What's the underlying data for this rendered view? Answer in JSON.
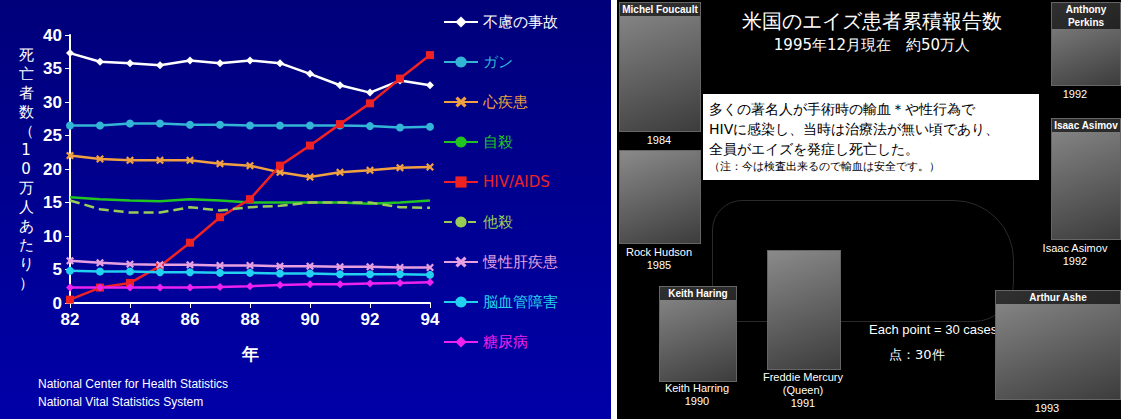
{
  "chart_data": {
    "type": "line",
    "x_label": "年",
    "y_label": "死亡者数（10万人あたり）",
    "annotations": [
      "National Center for Health Statistics",
      "National Vital Statistics System"
    ],
    "x": [
      82,
      83,
      84,
      85,
      86,
      87,
      88,
      89,
      90,
      91,
      92,
      93,
      94
    ],
    "xlim": [
      82,
      94
    ],
    "xticks": [
      82,
      84,
      86,
      88,
      90,
      92,
      94
    ],
    "ylim": [
      0,
      40
    ],
    "yticks": [
      0,
      5,
      10,
      15,
      20,
      25,
      30,
      35,
      40
    ],
    "grid": false,
    "legend": "right",
    "series": [
      {
        "name": "不慮の事故",
        "color": "#ffffff",
        "marker": "diamond",
        "line_style": "solid",
        "values": [
          37.3,
          36,
          35.8,
          35.5,
          36.2,
          35.8,
          36.2,
          35.8,
          34.2,
          32.5,
          31.4,
          33.2,
          32.5
        ]
      },
      {
        "name": "ガン",
        "color": "#33b5d6",
        "marker": "circle",
        "line_style": "solid",
        "values": [
          26.5,
          26.5,
          26.8,
          26.8,
          26.6,
          26.6,
          26.5,
          26.5,
          26.5,
          26.5,
          26.4,
          26.2,
          26.3
        ]
      },
      {
        "name": "心疾患",
        "color": "#f0a040",
        "marker": "x",
        "line_style": "solid",
        "values": [
          22,
          21.5,
          21.3,
          21.3,
          21.3,
          20.8,
          20.5,
          19.5,
          18.8,
          19.5,
          19.8,
          20.2,
          20.3
        ]
      },
      {
        "name": "自殺",
        "color": "#22c422",
        "marker": "none",
        "line_style": "solid",
        "values": [
          15.8,
          15.5,
          15.3,
          15.2,
          15.5,
          15.3,
          15,
          15,
          15,
          15,
          14.8,
          15,
          15.3
        ]
      },
      {
        "name": "HIV/AIDS",
        "color": "#ee2222",
        "marker": "square",
        "line_style": "solid",
        "values": [
          0.5,
          2.3,
          3,
          5.5,
          9,
          12.8,
          15.5,
          20.5,
          23.5,
          26.7,
          29.8,
          33.5,
          37
        ]
      },
      {
        "name": "他殺",
        "color": "#99cc55",
        "marker": "none",
        "line_style": "dashed",
        "values": [
          15.3,
          14,
          13.5,
          13.5,
          14.3,
          13.8,
          14.3,
          14.5,
          15,
          15,
          15,
          14.3,
          14.2
        ]
      },
      {
        "name": "慢性肝疾患",
        "color": "#e6a0e0",
        "marker": "x",
        "line_style": "solid",
        "values": [
          6.3,
          6,
          5.8,
          5.7,
          5.7,
          5.6,
          5.6,
          5.5,
          5.5,
          5.4,
          5.4,
          5.3,
          5.3
        ]
      },
      {
        "name": "脳血管障害",
        "color": "#22d0f0",
        "marker": "circle",
        "line_style": "solid",
        "values": [
          4.8,
          4.7,
          4.7,
          4.6,
          4.6,
          4.5,
          4.5,
          4.4,
          4.4,
          4.3,
          4.3,
          4.3,
          4.2
        ]
      },
      {
        "name": "糖尿病",
        "color": "#ee22ee",
        "marker": "diamond",
        "line_style": "solid",
        "values": [
          2.3,
          2.3,
          2.3,
          2.3,
          2.3,
          2.4,
          2.5,
          2.7,
          2.8,
          2.8,
          2.9,
          3,
          3.1
        ]
      }
    ]
  },
  "slide": {
    "title": "米国のエイズ患者累積報告数",
    "subtitle": "1995年12月現在　約50万人",
    "note_box": {
      "lines": [
        "多くの著名人が手術時の輸血＊や性行為で",
        "HIVに感染し、当時は治療法が無い頃であり、",
        "全員がエイズを発症し死亡した。"
      ],
      "footnote": "（注：今は検査出来るので輸血は安全です。）"
    },
    "map_legend": [
      "Each point = 30 cases",
      "点：30件"
    ],
    "people": [
      {
        "photo_label": "Michel Foucault",
        "year": "1984"
      },
      {
        "photo_label": "Anthony Perkins",
        "year": "1992"
      },
      {
        "photo_label": "Isaac Asimov",
        "caption": [
          "Isaac Asimov"
        ],
        "year": "1992"
      },
      {
        "caption": [
          "Rock Hudson"
        ],
        "year": "1985"
      },
      {
        "photo_label": "Keith Haring",
        "caption": [
          "Keith Harring"
        ],
        "year": "1990"
      },
      {
        "caption": [
          "Freddie Mercury",
          "(Queen)"
        ],
        "year": "1991"
      },
      {
        "photo_label": "Arthur Ashe",
        "year": "1993"
      }
    ]
  }
}
